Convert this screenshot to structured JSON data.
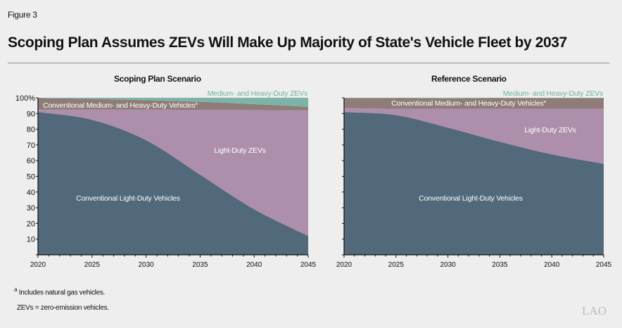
{
  "figure_label": "Figure 3",
  "title": "Scoping Plan Assumes ZEVs Will Make Up Majority of State's Vehicle Fleet by 2037",
  "footnotes": {
    "a_marker": "a",
    "a_text": "Includes natural gas vehicles.",
    "abbrev": "ZEVs = zero-emission vehicles."
  },
  "logo": "LAO",
  "colors": {
    "conventional_light_duty": "#51697a",
    "light_duty_zevs": "#ad8fac",
    "conventional_mhd": "#8f7c78",
    "mhd_zevs": "#7db4a8",
    "mhd_zevs_label": "#6fb3a3"
  },
  "chart_data": [
    {
      "type": "area",
      "stacked": true,
      "title": "Scoping Plan Scenario",
      "x": [
        2020,
        2025,
        2030,
        2035,
        2040,
        2045
      ],
      "xlim": [
        2020,
        2045
      ],
      "ylim": [
        0,
        100
      ],
      "y_ticks": [
        "",
        "10",
        "20",
        "30",
        "40",
        "50",
        "60",
        "70",
        "80",
        "90",
        "100%"
      ],
      "x_ticks": [
        "2020",
        "2025",
        "2030",
        "2035",
        "2040",
        "2045"
      ],
      "series": [
        {
          "name": "Conventional Light-Duty Vehicles",
          "values": [
            91,
            86,
            73,
            51,
            29,
            12
          ]
        },
        {
          "name": "Light-Duty ZEVs",
          "values": [
            1.5,
            6.5,
            19.5,
            41.3,
            63.2,
            80
          ]
        },
        {
          "name": "Conventional Medium- and Heavy-Duty Vehicles",
          "footnote": "a",
          "values": [
            7.3,
            6.8,
            6,
            5.2,
            3.8,
            2.3
          ]
        },
        {
          "name": "Medium- and Heavy-Duty ZEVs",
          "values": [
            0.2,
            0.7,
            1.5,
            2.5,
            4,
            5.7
          ]
        }
      ]
    },
    {
      "type": "area",
      "stacked": true,
      "title": "Reference Scenario",
      "x": [
        2020,
        2025,
        2030,
        2035,
        2040,
        2045
      ],
      "xlim": [
        2020,
        2045
      ],
      "ylim": [
        0,
        100
      ],
      "x_ticks": [
        "2020",
        "2025",
        "2030",
        "2035",
        "2040",
        "2045"
      ],
      "series": [
        {
          "name": "Conventional Light-Duty Vehicles",
          "values": [
            91,
            89,
            81,
            72,
            64,
            58
          ]
        },
        {
          "name": "Light-Duty ZEVs",
          "values": [
            2.5,
            4,
            12,
            21,
            29,
            35
          ]
        },
        {
          "name": "Conventional Medium- and Heavy-Duty Vehicles",
          "footnote": "a",
          "values": [
            6.3,
            6.8,
            6.7,
            6.8,
            6.8,
            6.8
          ]
        },
        {
          "name": "Medium- and Heavy-Duty ZEVs",
          "values": [
            0.2,
            0.2,
            0.3,
            0.2,
            0.2,
            0.2
          ]
        }
      ]
    }
  ]
}
